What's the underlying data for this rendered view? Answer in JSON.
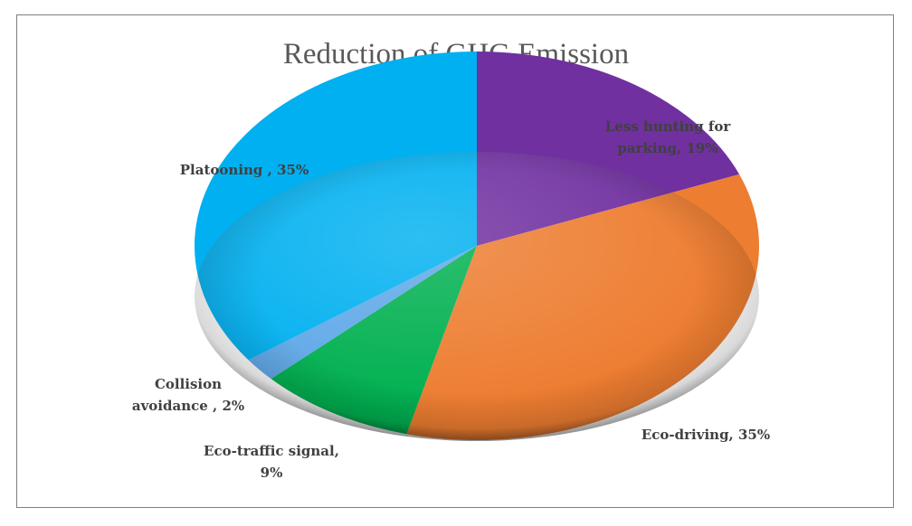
{
  "chart_data": {
    "type": "pie",
    "title": "Reduction of GHG Emission",
    "slices": [
      {
        "name": "Less hunting for parking",
        "value": 19,
        "label_lines": [
          "Less hunting for",
          "parking, 19%"
        ],
        "color": "#7030a0"
      },
      {
        "name": "Eco-driving",
        "value": 35,
        "label_lines": [
          "Eco-driving, 35%"
        ],
        "color": "#ed7d31"
      },
      {
        "name": "Eco-traffic signal",
        "value": 9,
        "label_lines": [
          "Eco-traffic signal,",
          "9%"
        ],
        "color": "#00b050"
      },
      {
        "name": "Collision avoidance",
        "value": 2,
        "label_lines": [
          "Collision",
          "avoidance , 2%"
        ],
        "color": "#5fa8e8"
      },
      {
        "name": "Platooning",
        "value": 35,
        "label_lines": [
          "Platooning , 35%"
        ],
        "color": "#00b0f0"
      }
    ],
    "legend": "none",
    "style": "3d-ellipse"
  }
}
